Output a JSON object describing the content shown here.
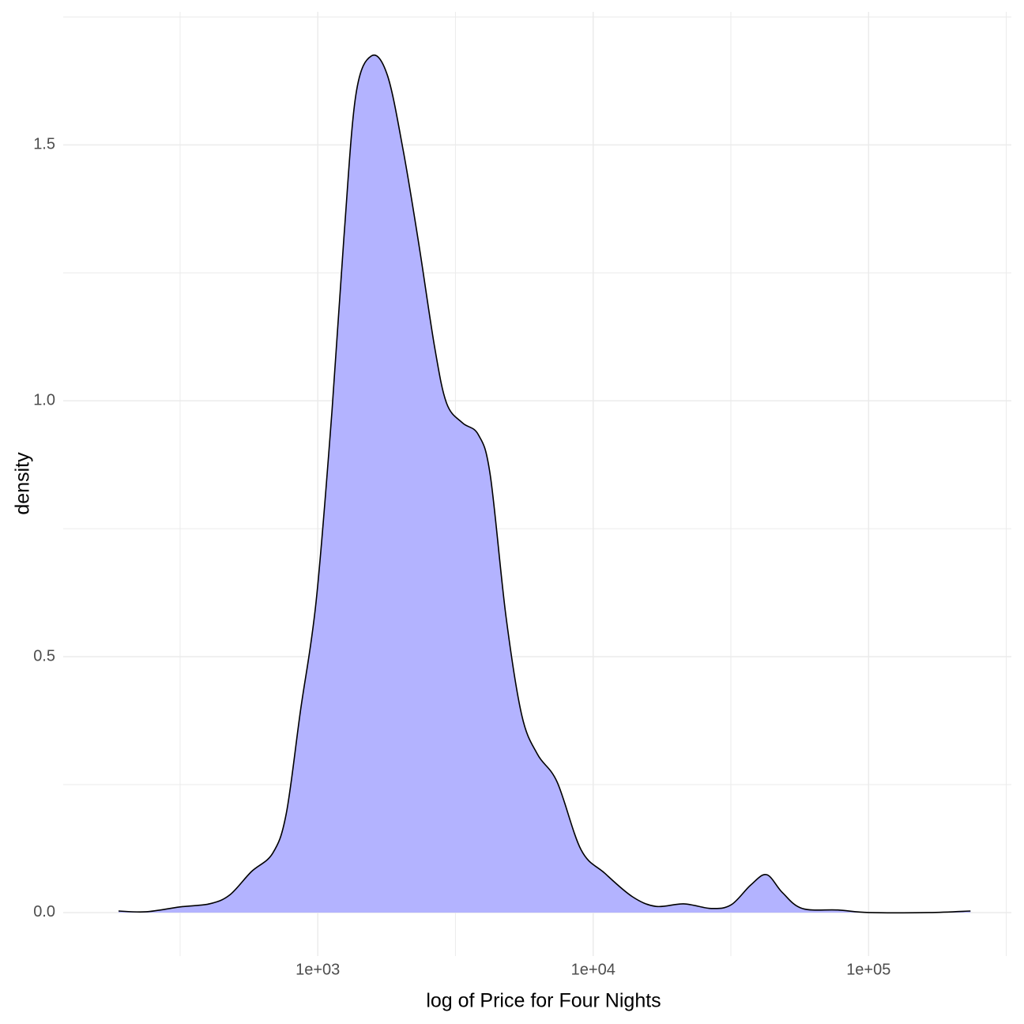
{
  "chart_data": {
    "type": "density",
    "x_label": "log of Price for Four Nights",
    "y_label": "density",
    "x": [
      189,
      238,
      316,
      404,
      478,
      574,
      686,
      768,
      865,
      987,
      1126,
      1244,
      1374,
      1567,
      1790,
      2043,
      2331,
      2660,
      2937,
      3350,
      3826,
      4226,
      4823,
      5502,
      6281,
      7400,
      9030,
      11010,
      13880,
      16910,
      21320,
      26860,
      31680,
      37360,
      42650,
      48660,
      57400,
      77300,
      100600,
      165400,
      234500
    ],
    "values": [
      0.003,
      0.0015,
      0.011,
      0.017,
      0.034,
      0.08,
      0.116,
      0.193,
      0.394,
      0.61,
      0.98,
      1.319,
      1.597,
      1.674,
      1.636,
      1.489,
      1.304,
      1.103,
      0.995,
      0.957,
      0.934,
      0.856,
      0.579,
      0.386,
      0.309,
      0.255,
      0.123,
      0.077,
      0.031,
      0.012,
      0.017,
      0.008,
      0.015,
      0.054,
      0.074,
      0.039,
      0.008,
      0.005,
      0,
      0,
      0.003
    ],
    "fill": "#b3b3ff",
    "line_color": "#000000",
    "x_log": true,
    "xlim": [
      119,
      330000
    ],
    "xticks": [
      {
        "value": 1000,
        "label": "1e+03"
      },
      {
        "value": 10000,
        "label": "1e+04"
      },
      {
        "value": 100000,
        "label": "1e+05"
      }
    ],
    "ylim": [
      -0.085,
      1.76
    ],
    "yticks": [
      {
        "value": 0,
        "label": "0.0"
      },
      0.5,
      {
        "value": 1,
        "label": "1.0"
      },
      1.5
    ],
    "grid": true
  }
}
